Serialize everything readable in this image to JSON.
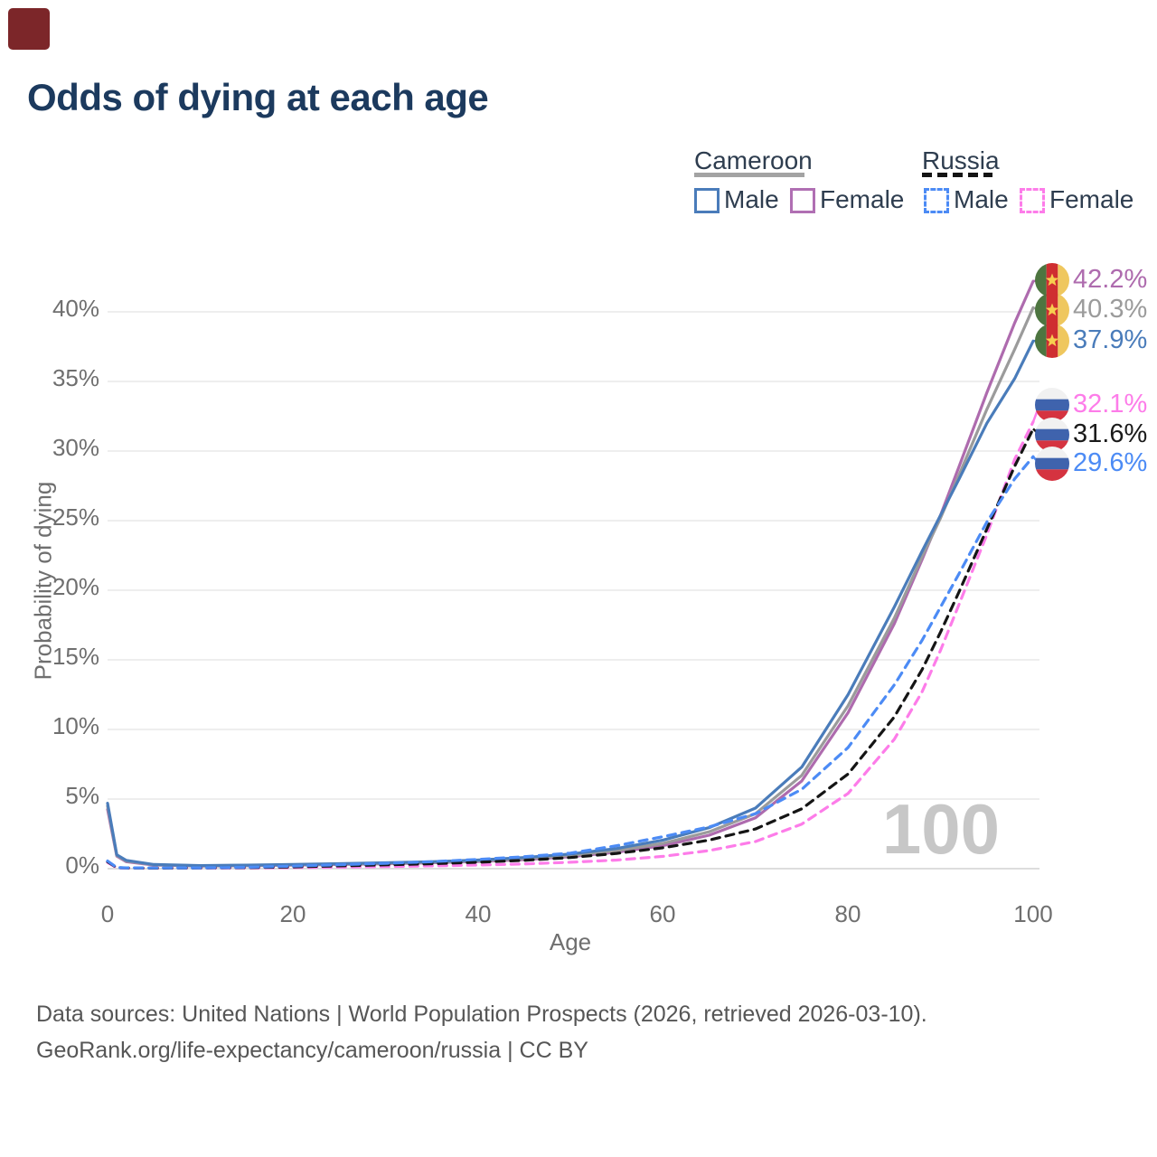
{
  "page": {
    "title": "Odds of dying at each age"
  },
  "legend": {
    "groups": [
      {
        "country": "Cameroon",
        "style": "solid",
        "items": [
          {
            "label": "Male"
          },
          {
            "label": "Female"
          }
        ]
      },
      {
        "country": "Russia",
        "style": "dashed",
        "items": [
          {
            "label": "Male"
          },
          {
            "label": "Female"
          }
        ]
      }
    ]
  },
  "watermark": "100",
  "footer": {
    "line1": "Data sources: United Nations | World Population Prospects (2026, retrieved 2026-03-10).",
    "line2": "GeoRank.org/life-expectancy/cameroon/russia | CC BY"
  },
  "chart_data": {
    "type": "line",
    "title": "Odds of dying at each age",
    "xlabel": "Age",
    "ylabel": "Probability of dying",
    "x_ticks": [
      "0",
      "20",
      "40",
      "60",
      "80",
      "100"
    ],
    "y_ticks": [
      "0%",
      "5%",
      "10%",
      "15%",
      "20%",
      "25%",
      "30%",
      "35%",
      "40%"
    ],
    "xlim": [
      0,
      100
    ],
    "ylim": [
      0,
      43
    ],
    "grid": "horizontal",
    "legend_position": "top-right",
    "x": [
      0,
      1,
      2,
      5,
      10,
      15,
      20,
      25,
      30,
      35,
      40,
      45,
      50,
      55,
      60,
      65,
      70,
      75,
      80,
      85,
      88,
      90,
      92,
      95,
      98,
      100
    ],
    "series": [
      {
        "name": "cameroon-female",
        "country": "Cameroon",
        "sex": "Female",
        "color": "#ae6bae",
        "dash": false,
        "end_label": "42.2%",
        "flag": "cameroon",
        "values": [
          4.25,
          0.9,
          0.5,
          0.26,
          0.19,
          0.21,
          0.25,
          0.3,
          0.35,
          0.42,
          0.51,
          0.65,
          0.86,
          1.18,
          1.65,
          2.4,
          3.65,
          6.3,
          11.2,
          17.6,
          22.2,
          25.4,
          28.9,
          34.2,
          39.2,
          42.2
        ]
      },
      {
        "name": "cameroon-both",
        "country": "Cameroon",
        "sex": "Both",
        "color": "#9b9b9b",
        "dash": false,
        "end_label": "40.3%",
        "flag": "cameroon",
        "values": [
          4.5,
          0.95,
          0.55,
          0.28,
          0.2,
          0.23,
          0.27,
          0.33,
          0.38,
          0.46,
          0.56,
          0.72,
          0.95,
          1.3,
          1.82,
          2.65,
          3.95,
          6.7,
          11.7,
          18.0,
          22.4,
          25.2,
          28.3,
          33.0,
          37.3,
          40.3
        ]
      },
      {
        "name": "cameroon-male",
        "country": "Cameroon",
        "sex": "Male",
        "color": "#4a7cba",
        "dash": false,
        "end_label": "37.9%",
        "flag": "cameroon",
        "values": [
          4.7,
          1.0,
          0.6,
          0.3,
          0.22,
          0.25,
          0.3,
          0.36,
          0.42,
          0.5,
          0.62,
          0.8,
          1.05,
          1.45,
          2.05,
          2.95,
          4.35,
          7.3,
          12.5,
          18.8,
          22.8,
          25.4,
          28.0,
          32.0,
          35.2,
          37.9
        ]
      },
      {
        "name": "russia-female",
        "country": "Russia",
        "sex": "Female",
        "color": "#fd7ce9",
        "dash": true,
        "end_label": "32.1%",
        "flag": "russia",
        "values": [
          0.45,
          0.06,
          0.04,
          0.03,
          0.04,
          0.05,
          0.08,
          0.11,
          0.15,
          0.2,
          0.26,
          0.34,
          0.46,
          0.62,
          0.88,
          1.3,
          1.95,
          3.2,
          5.4,
          9.3,
          12.7,
          15.7,
          19.0,
          24.0,
          29.4,
          32.1
        ]
      },
      {
        "name": "russia-both",
        "country": "Russia",
        "sex": "Both",
        "color": "#151515",
        "dash": true,
        "end_label": "31.6%",
        "flag": "russia",
        "values": [
          0.5,
          0.07,
          0.05,
          0.04,
          0.05,
          0.08,
          0.13,
          0.2,
          0.27,
          0.36,
          0.46,
          0.6,
          0.8,
          1.1,
          1.5,
          2.05,
          2.85,
          4.3,
          6.8,
          10.9,
          14.3,
          17.0,
          19.9,
          24.4,
          28.9,
          31.6
        ]
      },
      {
        "name": "russia-male",
        "country": "Russia",
        "sex": "Male",
        "color": "#4c8bf5",
        "dash": true,
        "end_label": "29.6%",
        "flag": "russia",
        "values": [
          0.55,
          0.08,
          0.06,
          0.05,
          0.06,
          0.1,
          0.18,
          0.28,
          0.38,
          0.5,
          0.66,
          0.86,
          1.12,
          1.65,
          2.3,
          3.0,
          3.95,
          5.7,
          8.7,
          13.2,
          16.4,
          18.8,
          21.2,
          24.9,
          28.0,
          29.6
        ]
      }
    ]
  }
}
